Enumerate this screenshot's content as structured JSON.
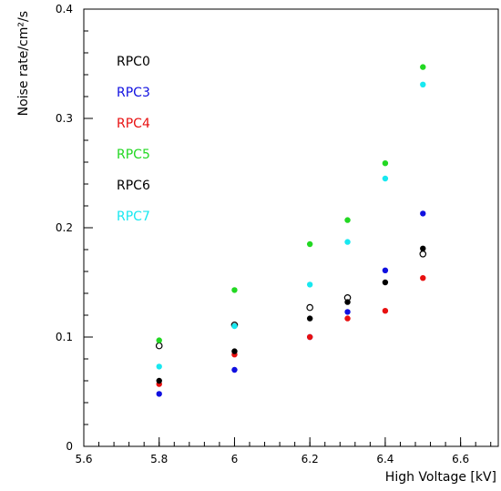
{
  "chart_data": {
    "type": "scatter",
    "title": "",
    "xlabel": "High Voltage [kV]",
    "ylabel": "Noise rate/cm²/s",
    "xlim": [
      5.6,
      6.7
    ],
    "ylim": [
      0,
      0.4
    ],
    "x_ticks": [
      "5.6",
      "5.8",
      "6",
      "6.2",
      "6.4",
      "6.6"
    ],
    "y_ticks": [
      "0",
      "0.1",
      "0.2",
      "0.3",
      "0.4"
    ],
    "grid": false,
    "legend_placement": "upper-left",
    "series": [
      {
        "name": "RPC0",
        "color": "#000000",
        "marker": "open-circle",
        "x": [
          5.8,
          6.0,
          6.2,
          6.3,
          6.5
        ],
        "y": [
          0.092,
          0.111,
          0.127,
          0.136,
          0.176
        ]
      },
      {
        "name": "RPC3",
        "color": "#1010e0",
        "marker": "filled-circle",
        "x": [
          5.8,
          6.0,
          6.2,
          6.3,
          6.4,
          6.5
        ],
        "y": [
          0.048,
          0.07,
          0.1,
          0.123,
          0.161,
          0.213
        ]
      },
      {
        "name": "RPC4",
        "color": "#e81010",
        "marker": "filled-circle",
        "x": [
          5.8,
          6.0,
          6.2,
          6.3,
          6.4,
          6.5
        ],
        "y": [
          0.057,
          0.084,
          0.1,
          0.117,
          0.124,
          0.154
        ]
      },
      {
        "name": "RPC5",
        "color": "#22d822",
        "marker": "filled-circle",
        "x": [
          5.8,
          6.0,
          6.2,
          6.3,
          6.4,
          6.5
        ],
        "y": [
          0.097,
          0.143,
          0.185,
          0.207,
          0.259,
          0.347
        ]
      },
      {
        "name": "RPC6",
        "color": "#000000",
        "marker": "filled-circle",
        "x": [
          5.8,
          6.0,
          6.2,
          6.3,
          6.4,
          6.5
        ],
        "y": [
          0.06,
          0.087,
          0.117,
          0.132,
          0.15,
          0.181
        ]
      },
      {
        "name": "RPC7",
        "color": "#18e8f0",
        "marker": "filled-circle",
        "x": [
          5.8,
          6.0,
          6.2,
          6.3,
          6.4,
          6.5
        ],
        "y": [
          0.073,
          0.11,
          0.148,
          0.187,
          0.245,
          0.331
        ]
      }
    ]
  }
}
